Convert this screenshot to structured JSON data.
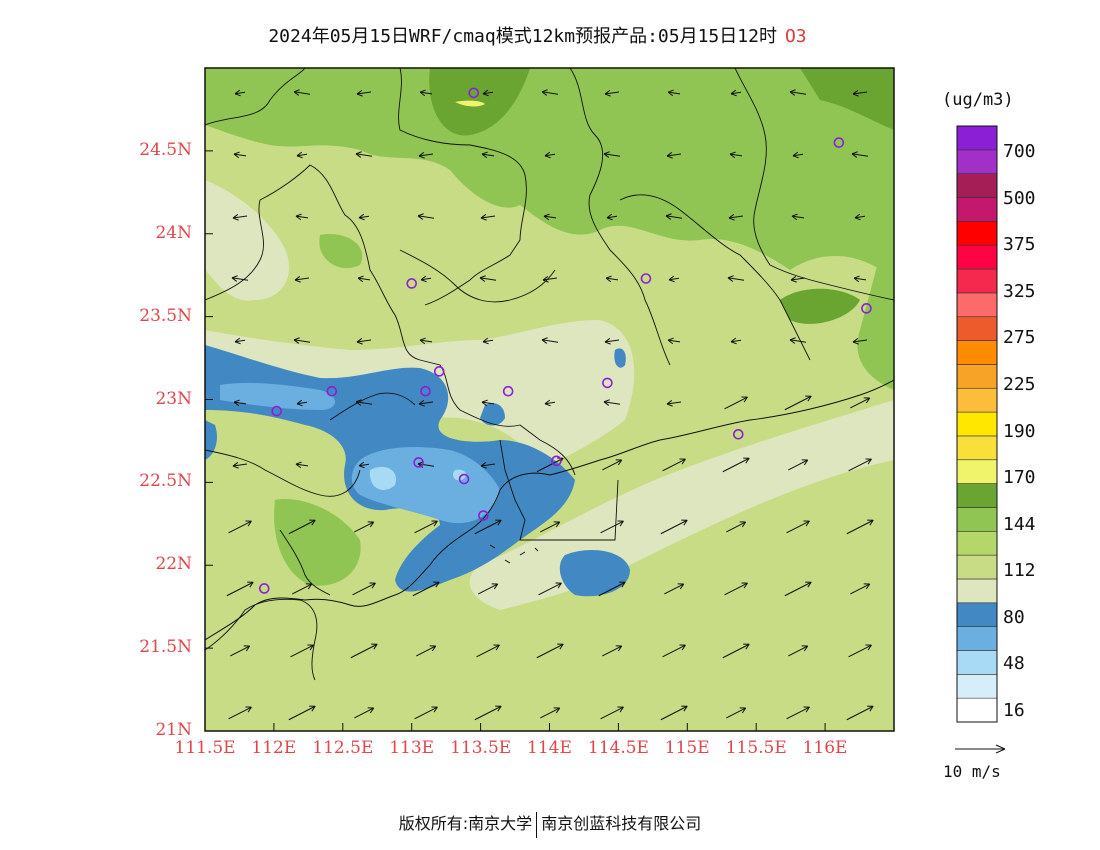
{
  "title": {
    "text": "2024年05月15日WRF/cmaq模式12km预报产品:05月15日12时",
    "variable": "O3"
  },
  "map": {
    "lat_labels": [
      "24.5N",
      "24N",
      "23.5N",
      "23N",
      "22.5N",
      "22N",
      "21.5N",
      "21N"
    ],
    "lon_labels": [
      "111.5E",
      "112E",
      "112.5E",
      "113E",
      "113.5E",
      "114E",
      "114.5E",
      "115E",
      "115.5E",
      "116E"
    ],
    "lat_range": [
      21,
      25
    ],
    "lon_range": [
      111.5,
      116.5
    ],
    "background_level_color": "#c7dc84",
    "station_marker_color": "#8b1fd6",
    "stations": [
      {
        "lon": 113.45,
        "lat": 24.85
      },
      {
        "lon": 116.1,
        "lat": 24.55
      },
      {
        "lon": 113.0,
        "lat": 23.7
      },
      {
        "lon": 114.7,
        "lat": 23.73
      },
      {
        "lon": 116.3,
        "lat": 23.55
      },
      {
        "lon": 112.42,
        "lat": 23.05
      },
      {
        "lon": 112.02,
        "lat": 22.93
      },
      {
        "lon": 113.1,
        "lat": 23.05
      },
      {
        "lon": 113.2,
        "lat": 23.17
      },
      {
        "lon": 113.7,
        "lat": 23.05
      },
      {
        "lon": 114.42,
        "lat": 23.1
      },
      {
        "lon": 115.37,
        "lat": 22.79
      },
      {
        "lon": 113.05,
        "lat": 22.62
      },
      {
        "lon": 113.38,
        "lat": 22.52
      },
      {
        "lon": 114.05,
        "lat": 22.63
      },
      {
        "lon": 113.52,
        "lat": 22.3
      },
      {
        "lon": 111.93,
        "lat": 21.86
      }
    ]
  },
  "colorbar": {
    "units": "(ug/m3)",
    "labels": [
      "700",
      "500",
      "375",
      "325",
      "275",
      "225",
      "190",
      "170",
      "144",
      "112",
      "80",
      "48",
      "16"
    ],
    "colors": [
      "#ffffff",
      "#d6eefa",
      "#a8daf5",
      "#6aafe0",
      "#4288c2",
      "#dde6bf",
      "#c7dc84",
      "#b5d769",
      "#90c553",
      "#6aa531",
      "#f0f46b",
      "#f8df3a",
      "#ffe700",
      "#fbbd3a",
      "#f6a327",
      "#fe8c03",
      "#ed5a2b",
      "#fc6a6a",
      "#f5284e",
      "#fe0445",
      "#fe0000",
      "#c4186f",
      "#a51f56",
      "#a130c9",
      "#8b1fd6"
    ]
  },
  "wind": {
    "reference_label": "10 m/s"
  },
  "footer": {
    "copyright": "版权所有:南京大学",
    "company": "南京创蓝科技有限公司"
  }
}
